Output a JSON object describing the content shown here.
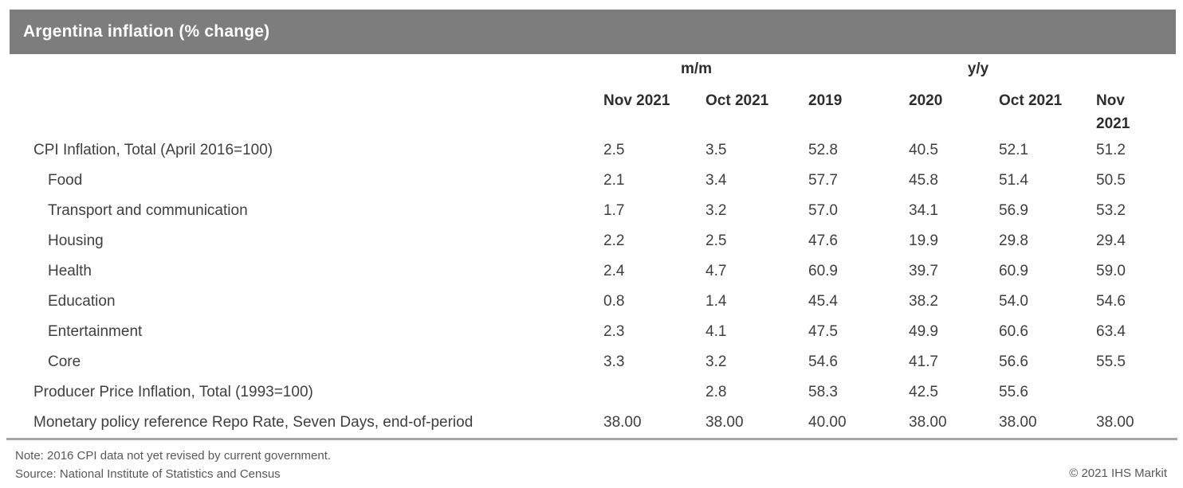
{
  "title_bar": {
    "title": "Argentina inflation (% change)"
  },
  "colors": {
    "header_bg": "#7d7d7d",
    "header_text": "#ffffff",
    "body_text": "#3f3f3f",
    "rule": "#a6a6a6",
    "footnote_text": "#595959"
  },
  "table": {
    "group_headers": [
      {
        "label": "m/m",
        "span": 2
      },
      {
        "label": "y/y",
        "span": 4
      }
    ],
    "column_headers": [
      "Nov 2021",
      "Oct 2021",
      "2019",
      "2020",
      "Oct 2021",
      "Nov 2021"
    ],
    "rows": [
      {
        "label": "CPI Inflation, Total (April 2016=100)",
        "indent": false,
        "values": [
          "2.5",
          "3.5",
          "52.8",
          "40.5",
          "52.1",
          "51.2"
        ]
      },
      {
        "label": "Food",
        "indent": true,
        "values": [
          "2.1",
          "3.4",
          "57.7",
          "45.8",
          "51.4",
          "50.5"
        ]
      },
      {
        "label": "Transport and communication",
        "indent": true,
        "values": [
          "1.7",
          "3.2",
          "57.0",
          "34.1",
          "56.9",
          "53.2"
        ]
      },
      {
        "label": "Housing",
        "indent": true,
        "values": [
          "2.2",
          "2.5",
          "47.6",
          "19.9",
          "29.8",
          "29.4"
        ]
      },
      {
        "label": "Health",
        "indent": true,
        "values": [
          "2.4",
          "4.7",
          "60.9",
          "39.7",
          "60.9",
          "59.0"
        ]
      },
      {
        "label": "Education",
        "indent": true,
        "values": [
          "0.8",
          "1.4",
          "45.4",
          "38.2",
          "54.0",
          "54.6"
        ]
      },
      {
        "label": "Entertainment",
        "indent": true,
        "values": [
          "2.3",
          "4.1",
          "47.5",
          "49.9",
          "60.6",
          "63.4"
        ]
      },
      {
        "label": "Core",
        "indent": true,
        "values": [
          "3.3",
          "3.2",
          "54.6",
          "41.7",
          "56.6",
          "55.5"
        ]
      },
      {
        "label": "Producer Price Inflation, Total (1993=100)",
        "indent": false,
        "values": [
          "",
          "2.8",
          "58.3",
          "42.5",
          "55.6",
          ""
        ]
      },
      {
        "label": "Monetary policy reference Repo Rate, Seven Days, end-of-period",
        "indent": false,
        "values": [
          "38.00",
          "38.00",
          "40.00",
          "38.00",
          "38.00",
          "38.00"
        ]
      }
    ]
  },
  "footer": {
    "note": "Note: 2016 CPI data not yet revised by current government.",
    "source": "Source: National Institute of Statistics and Census",
    "copyright": "© 2021 IHS Markit"
  },
  "chart_data": {
    "type": "table",
    "title": "Argentina inflation (% change)",
    "column_groups": [
      {
        "label": "m/m",
        "columns": [
          "Nov 2021",
          "Oct 2021"
        ]
      },
      {
        "label": "y/y",
        "columns": [
          "2019",
          "2020",
          "Oct 2021",
          "Nov 2021"
        ]
      }
    ],
    "columns": [
      "Nov 2021 (m/m)",
      "Oct 2021 (m/m)",
      "2019 (y/y)",
      "2020 (y/y)",
      "Oct 2021 (y/y)",
      "Nov 2021 (y/y)"
    ],
    "rows": [
      {
        "label": "CPI Inflation, Total (April 2016=100)",
        "values": [
          2.5,
          3.5,
          52.8,
          40.5,
          52.1,
          51.2
        ]
      },
      {
        "label": "Food",
        "values": [
          2.1,
          3.4,
          57.7,
          45.8,
          51.4,
          50.5
        ]
      },
      {
        "label": "Transport and communication",
        "values": [
          1.7,
          3.2,
          57.0,
          34.1,
          56.9,
          53.2
        ]
      },
      {
        "label": "Housing",
        "values": [
          2.2,
          2.5,
          47.6,
          19.9,
          29.8,
          29.4
        ]
      },
      {
        "label": "Health",
        "values": [
          2.4,
          4.7,
          60.9,
          39.7,
          60.9,
          59.0
        ]
      },
      {
        "label": "Education",
        "values": [
          0.8,
          1.4,
          45.4,
          38.2,
          54.0,
          54.6
        ]
      },
      {
        "label": "Entertainment",
        "values": [
          2.3,
          4.1,
          47.5,
          49.9,
          60.6,
          63.4
        ]
      },
      {
        "label": "Core",
        "values": [
          3.3,
          3.2,
          54.6,
          41.7,
          56.6,
          55.5
        ]
      },
      {
        "label": "Producer Price Inflation, Total (1993=100)",
        "values": [
          null,
          2.8,
          58.3,
          42.5,
          55.6,
          null
        ]
      },
      {
        "label": "Monetary policy reference Repo Rate, Seven Days, end-of-period",
        "values": [
          38.0,
          38.0,
          40.0,
          38.0,
          38.0,
          38.0
        ]
      }
    ],
    "note": "Note: 2016 CPI data not yet revised by current government.",
    "source": "Source: National Institute of Statistics and Census",
    "copyright": "© 2021 IHS Markit"
  }
}
